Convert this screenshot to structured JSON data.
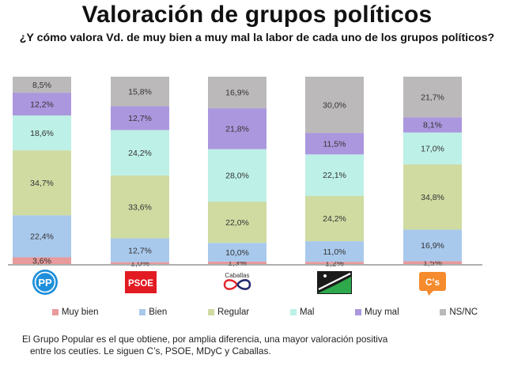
{
  "title": "Valoración de grupos políticos",
  "subtitle": "¿Y cómo valora Vd. de muy bien a muy mal la labor de cada uno de los grupos políticos?",
  "colors": {
    "muy_bien": "#E89A9C",
    "bien": "#A9C9EC",
    "regular": "#CFDBA1",
    "mal": "#BDF0E7",
    "muy_mal": "#AB97DE",
    "ns_nc": "#BBB9BA",
    "axis": "#7F7F7F"
  },
  "chart_data": {
    "type": "bar",
    "stacked": true,
    "categories": [
      "PP",
      "PSOE",
      "Caballas",
      "MDyC",
      "C's"
    ],
    "series": [
      {
        "name": "Muy bien",
        "color": "#E89A9C",
        "values": [
          3.6,
          1.0,
          1.3,
          1.2,
          1.5
        ],
        "labels": [
          "3,6%",
          "1,0%",
          "1,3%",
          "1,2%",
          "1,5%"
        ]
      },
      {
        "name": "Bien",
        "color": "#A9C9EC",
        "values": [
          22.4,
          12.7,
          10.0,
          11.0,
          16.9
        ],
        "labels": [
          "22,4%",
          "12,7%",
          "10,0%",
          "11,0%",
          "16,9%"
        ]
      },
      {
        "name": "Regular",
        "color": "#CFDBA1",
        "values": [
          34.7,
          33.6,
          22.0,
          24.2,
          34.8
        ],
        "labels": [
          "34,7%",
          "33,6%",
          "22,0%",
          "24,2%",
          "34,8%"
        ]
      },
      {
        "name": "Mal",
        "color": "#BDF0E7",
        "values": [
          18.6,
          24.2,
          28.0,
          22.1,
          17.0
        ],
        "labels": [
          "18,6%",
          "24,2%",
          "28,0%",
          "22,1%",
          "17,0%"
        ]
      },
      {
        "name": "Muy mal",
        "color": "#AB97DE",
        "values": [
          12.2,
          12.7,
          21.8,
          11.5,
          8.1
        ],
        "labels": [
          "12,2%",
          "12,7%",
          "21,8%",
          "11,5%",
          "8,1%"
        ]
      },
      {
        "name": "NS/NC",
        "color": "#BBB9BA",
        "values": [
          8.5,
          15.8,
          16.9,
          30.0,
          21.7
        ],
        "labels": [
          "8,5%",
          "15,8%",
          "16,9%",
          "30,0%",
          "21,7%"
        ]
      }
    ],
    "ylim": [
      0,
      100
    ],
    "legend_position": "bottom",
    "grid": false
  },
  "logos": {
    "pp": "PP",
    "psoe": "PSOE",
    "caballas": "Caballas",
    "cs": "C's"
  },
  "legend": [
    "Muy bien",
    "Bien",
    "Regular",
    "Mal",
    "Muy mal",
    "NS/NC"
  ],
  "footnote": {
    "line1": "El Grupo Popular es el que obtiene, por amplia diferencia, una mayor valoración positiva",
    "line2": "entre los ceutíes. Le siguen C’s, PSOE, MDyC y Caballas."
  }
}
